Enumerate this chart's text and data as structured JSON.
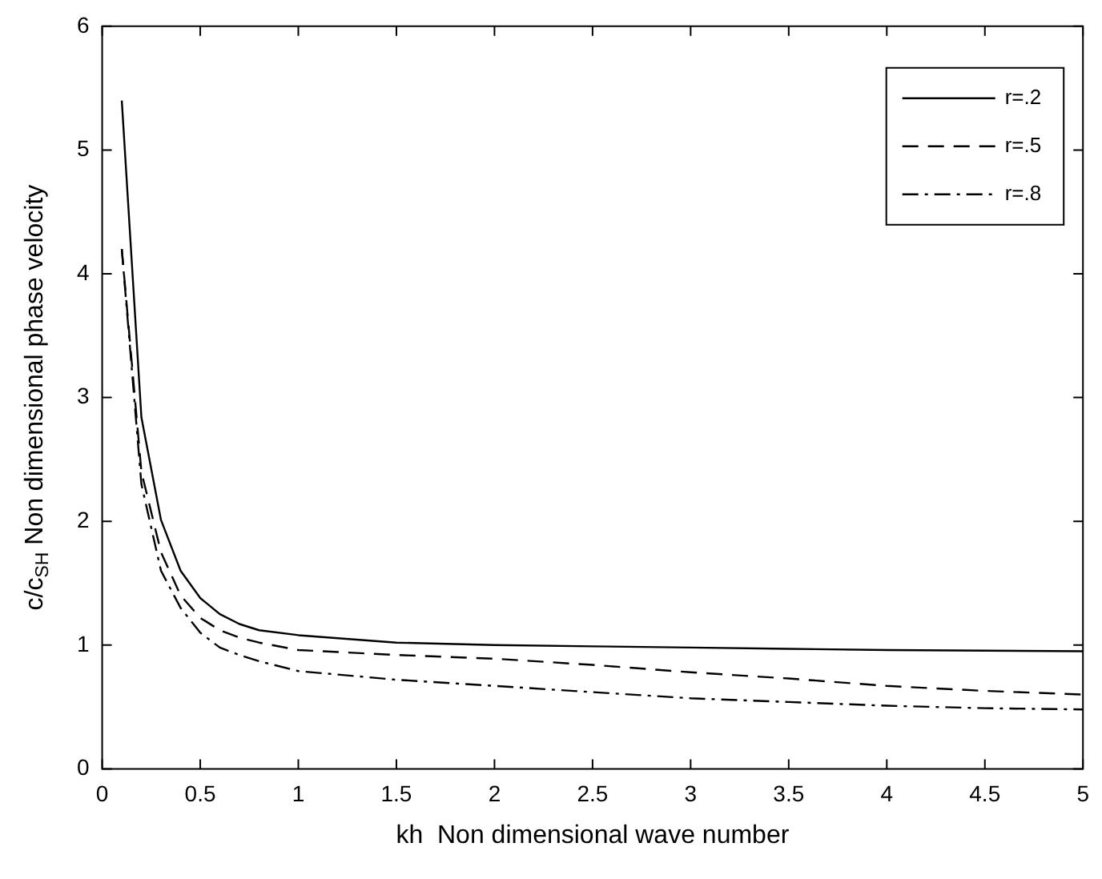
{
  "chart_data": {
    "type": "line",
    "xlabel": "kh  Non dimensional wave number",
    "ylabel": "c/c$_{SH}$ Non dimensional phase velocity",
    "x": [
      0.1,
      0.2,
      0.3,
      0.4,
      0.5,
      0.6,
      0.7,
      0.8,
      1,
      1.5,
      2,
      2.5,
      3,
      3.5,
      4,
      4.5,
      5
    ],
    "series": [
      {
        "name": "r=.2",
        "color": "#000000",
        "line_style": "solid",
        "values": [
          5.4,
          2.84,
          2.01,
          1.6,
          1.38,
          1.25,
          1.17,
          1.12,
          1.08,
          1.02,
          1.0,
          0.99,
          0.98,
          0.97,
          0.96,
          0.955,
          0.95
        ]
      },
      {
        "name": "r=.5",
        "color": "#000000",
        "line_style": "dashed",
        "values": [
          4.2,
          2.4,
          1.75,
          1.4,
          1.22,
          1.12,
          1.06,
          1.02,
          0.96,
          0.92,
          0.89,
          0.84,
          0.78,
          0.73,
          0.67,
          0.63,
          0.6
        ]
      },
      {
        "name": "r=.8",
        "color": "#000000",
        "line_style": "dashdot",
        "values": [
          4.2,
          2.3,
          1.6,
          1.3,
          1.1,
          0.98,
          0.92,
          0.87,
          0.79,
          0.72,
          0.67,
          0.62,
          0.57,
          0.54,
          0.51,
          0.49,
          0.48
        ]
      }
    ],
    "xlim": [
      0,
      5
    ],
    "xticks": [
      0,
      0.5,
      1,
      1.5,
      2,
      2.5,
      3,
      3.5,
      4,
      4.5,
      5
    ],
    "ylim": [
      0,
      6
    ],
    "yticks": [
      0,
      1,
      2,
      3,
      4,
      5,
      6
    ],
    "grid": false,
    "legend": "top right",
    "marker": "none"
  }
}
